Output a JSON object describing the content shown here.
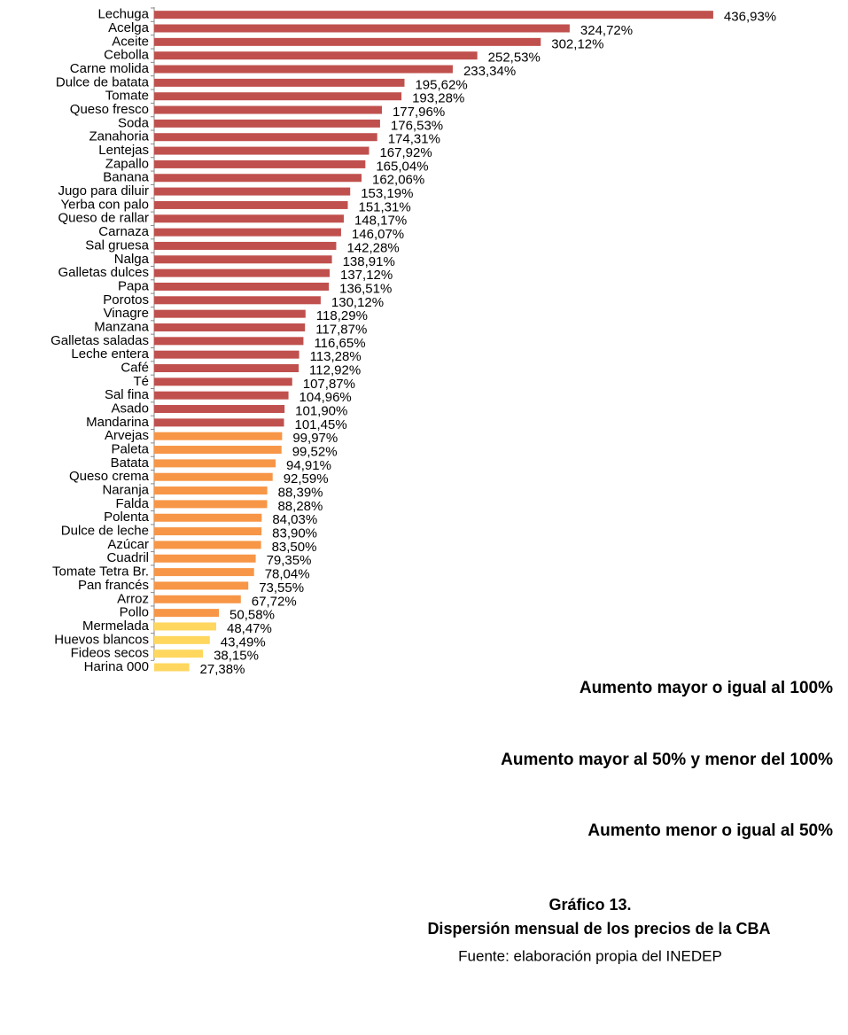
{
  "chart_data": {
    "type": "barh",
    "title": "Gráfico 13.",
    "subtitle": "Dispersión mensual de los precios de la CBA",
    "source": "Fuente: elaboración propia del INEDEP",
    "categories": [
      "Lechuga",
      "Acelga",
      "Aceite",
      "Cebolla",
      "Carne molida",
      "Dulce de batata",
      "Tomate",
      "Queso fresco",
      "Soda",
      "Zanahoria",
      "Lentejas",
      "Zapallo",
      "Banana",
      "Jugo para diluir",
      "Yerba con palo",
      "Queso de rallar",
      "Carnaza",
      "Sal gruesa",
      "Nalga",
      "Galletas dulces",
      "Papa",
      "Porotos",
      "Vinagre",
      "Manzana",
      "Galletas saladas",
      "Leche entera",
      "Café",
      "Té",
      "Sal fina",
      "Asado",
      "Mandarina",
      "Arvejas",
      "Paleta",
      "Batata",
      "Queso crema",
      "Naranja",
      "Falda",
      "Polenta",
      "Dulce de leche",
      "Azúcar",
      "Cuadril",
      "Tomate Tetra Br.",
      "Pan francés",
      "Arroz",
      "Pollo",
      "Mermelada",
      "Huevos blancos",
      "Fideos secos",
      "Harina 000"
    ],
    "values": [
      436.93,
      324.72,
      302.12,
      252.53,
      233.34,
      195.62,
      193.28,
      177.96,
      176.53,
      174.31,
      167.92,
      165.04,
      162.06,
      153.19,
      151.31,
      148.17,
      146.07,
      142.28,
      138.91,
      137.12,
      136.51,
      130.12,
      118.29,
      117.87,
      116.65,
      113.28,
      112.92,
      107.87,
      104.96,
      101.9,
      101.45,
      99.97,
      99.52,
      94.91,
      92.59,
      88.39,
      88.28,
      84.03,
      83.9,
      83.5,
      79.35,
      78.04,
      73.55,
      67.72,
      50.58,
      48.47,
      43.49,
      38.15,
      27.38
    ],
    "value_labels": [
      "436,93%",
      "324,72%",
      "302,12%",
      "252,53%",
      "233,34%",
      "195,62%",
      "193,28%",
      "177,96%",
      "176,53%",
      "174,31%",
      "167,92%",
      "165,04%",
      "162,06%",
      "153,19%",
      "151,31%",
      "148,17%",
      "146,07%",
      "142,28%",
      "138,91%",
      "137,12%",
      "136,51%",
      "130,12%",
      "118,29%",
      "117,87%",
      "116,65%",
      "113,28%",
      "112,92%",
      "107,87%",
      "104,96%",
      "101,90%",
      "101,45%",
      "99,97%",
      "99,52%",
      "94,91%",
      "92,59%",
      "88,39%",
      "88,28%",
      "84,03%",
      "83,90%",
      "83,50%",
      "79,35%",
      "78,04%",
      "73,55%",
      "67,72%",
      "50,58%",
      "48,47%",
      "43,49%",
      "38,15%",
      "27,38%"
    ],
    "colors": [
      "#c0504d",
      "#c0504d",
      "#c0504d",
      "#c0504d",
      "#c0504d",
      "#c0504d",
      "#c0504d",
      "#c0504d",
      "#c0504d",
      "#c0504d",
      "#c0504d",
      "#c0504d",
      "#c0504d",
      "#c0504d",
      "#c0504d",
      "#c0504d",
      "#c0504d",
      "#c0504d",
      "#c0504d",
      "#c0504d",
      "#c0504d",
      "#c0504d",
      "#c0504d",
      "#c0504d",
      "#c0504d",
      "#c0504d",
      "#c0504d",
      "#c0504d",
      "#c0504d",
      "#c0504d",
      "#c0504d",
      "#f79646",
      "#f79646",
      "#f79646",
      "#f79646",
      "#f79646",
      "#f79646",
      "#f79646",
      "#f79646",
      "#f79646",
      "#f79646",
      "#f79646",
      "#f79646",
      "#f79646",
      "#f79646",
      "#ffd75e",
      "#ffd75e",
      "#ffd75e",
      "#ffd75e"
    ],
    "legend": [
      {
        "label": "Aumento mayor o igual al 100%",
        "color": "#c0504d"
      },
      {
        "label": "Aumento mayor al 50% y menor del 100%",
        "color": "#f79646"
      },
      {
        "label": "Aumento menor o igual al 50%",
        "color": "#ffd75e"
      }
    ],
    "xlim": [
      0,
      500
    ]
  }
}
